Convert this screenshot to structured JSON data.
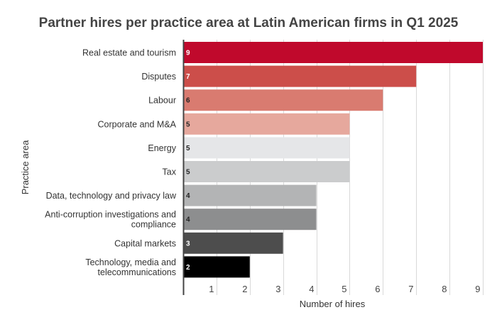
{
  "chart_data": {
    "type": "bar",
    "orientation": "horizontal",
    "title": "Partner hires per practice area at Latin American firms in Q1 2025",
    "xlabel": "Number of hires",
    "ylabel": "Practice area",
    "xlim": [
      0,
      9
    ],
    "xticks": [
      1,
      2,
      3,
      4,
      5,
      6,
      7,
      8,
      9
    ],
    "grid": true,
    "categories": [
      [
        "Real estate and tourism"
      ],
      [
        "Disputes"
      ],
      [
        "Labour"
      ],
      [
        "Corporate and M&A"
      ],
      [
        "Energy"
      ],
      [
        "Tax"
      ],
      [
        "Data, technology and privacy law"
      ],
      [
        "Anti-corruption investigations and",
        "compliance"
      ],
      [
        "Capital markets"
      ],
      [
        "Technology, media and",
        "telecommunications"
      ]
    ],
    "values": [
      9,
      7,
      6,
      5,
      5,
      5,
      4,
      4,
      3,
      2
    ],
    "colors": [
      "#c0092c",
      "#cc4e4a",
      "#d97b70",
      "#e6a89d",
      "#e5e6e8",
      "#cbcccd",
      "#b3b4b5",
      "#8d8e8f",
      "#4d4d4d",
      "#000000"
    ],
    "label_colors": [
      "#ffffff",
      "#ffffff",
      "#222222",
      "#222222",
      "#222222",
      "#222222",
      "#222222",
      "#222222",
      "#ffffff",
      "#ffffff"
    ]
  }
}
